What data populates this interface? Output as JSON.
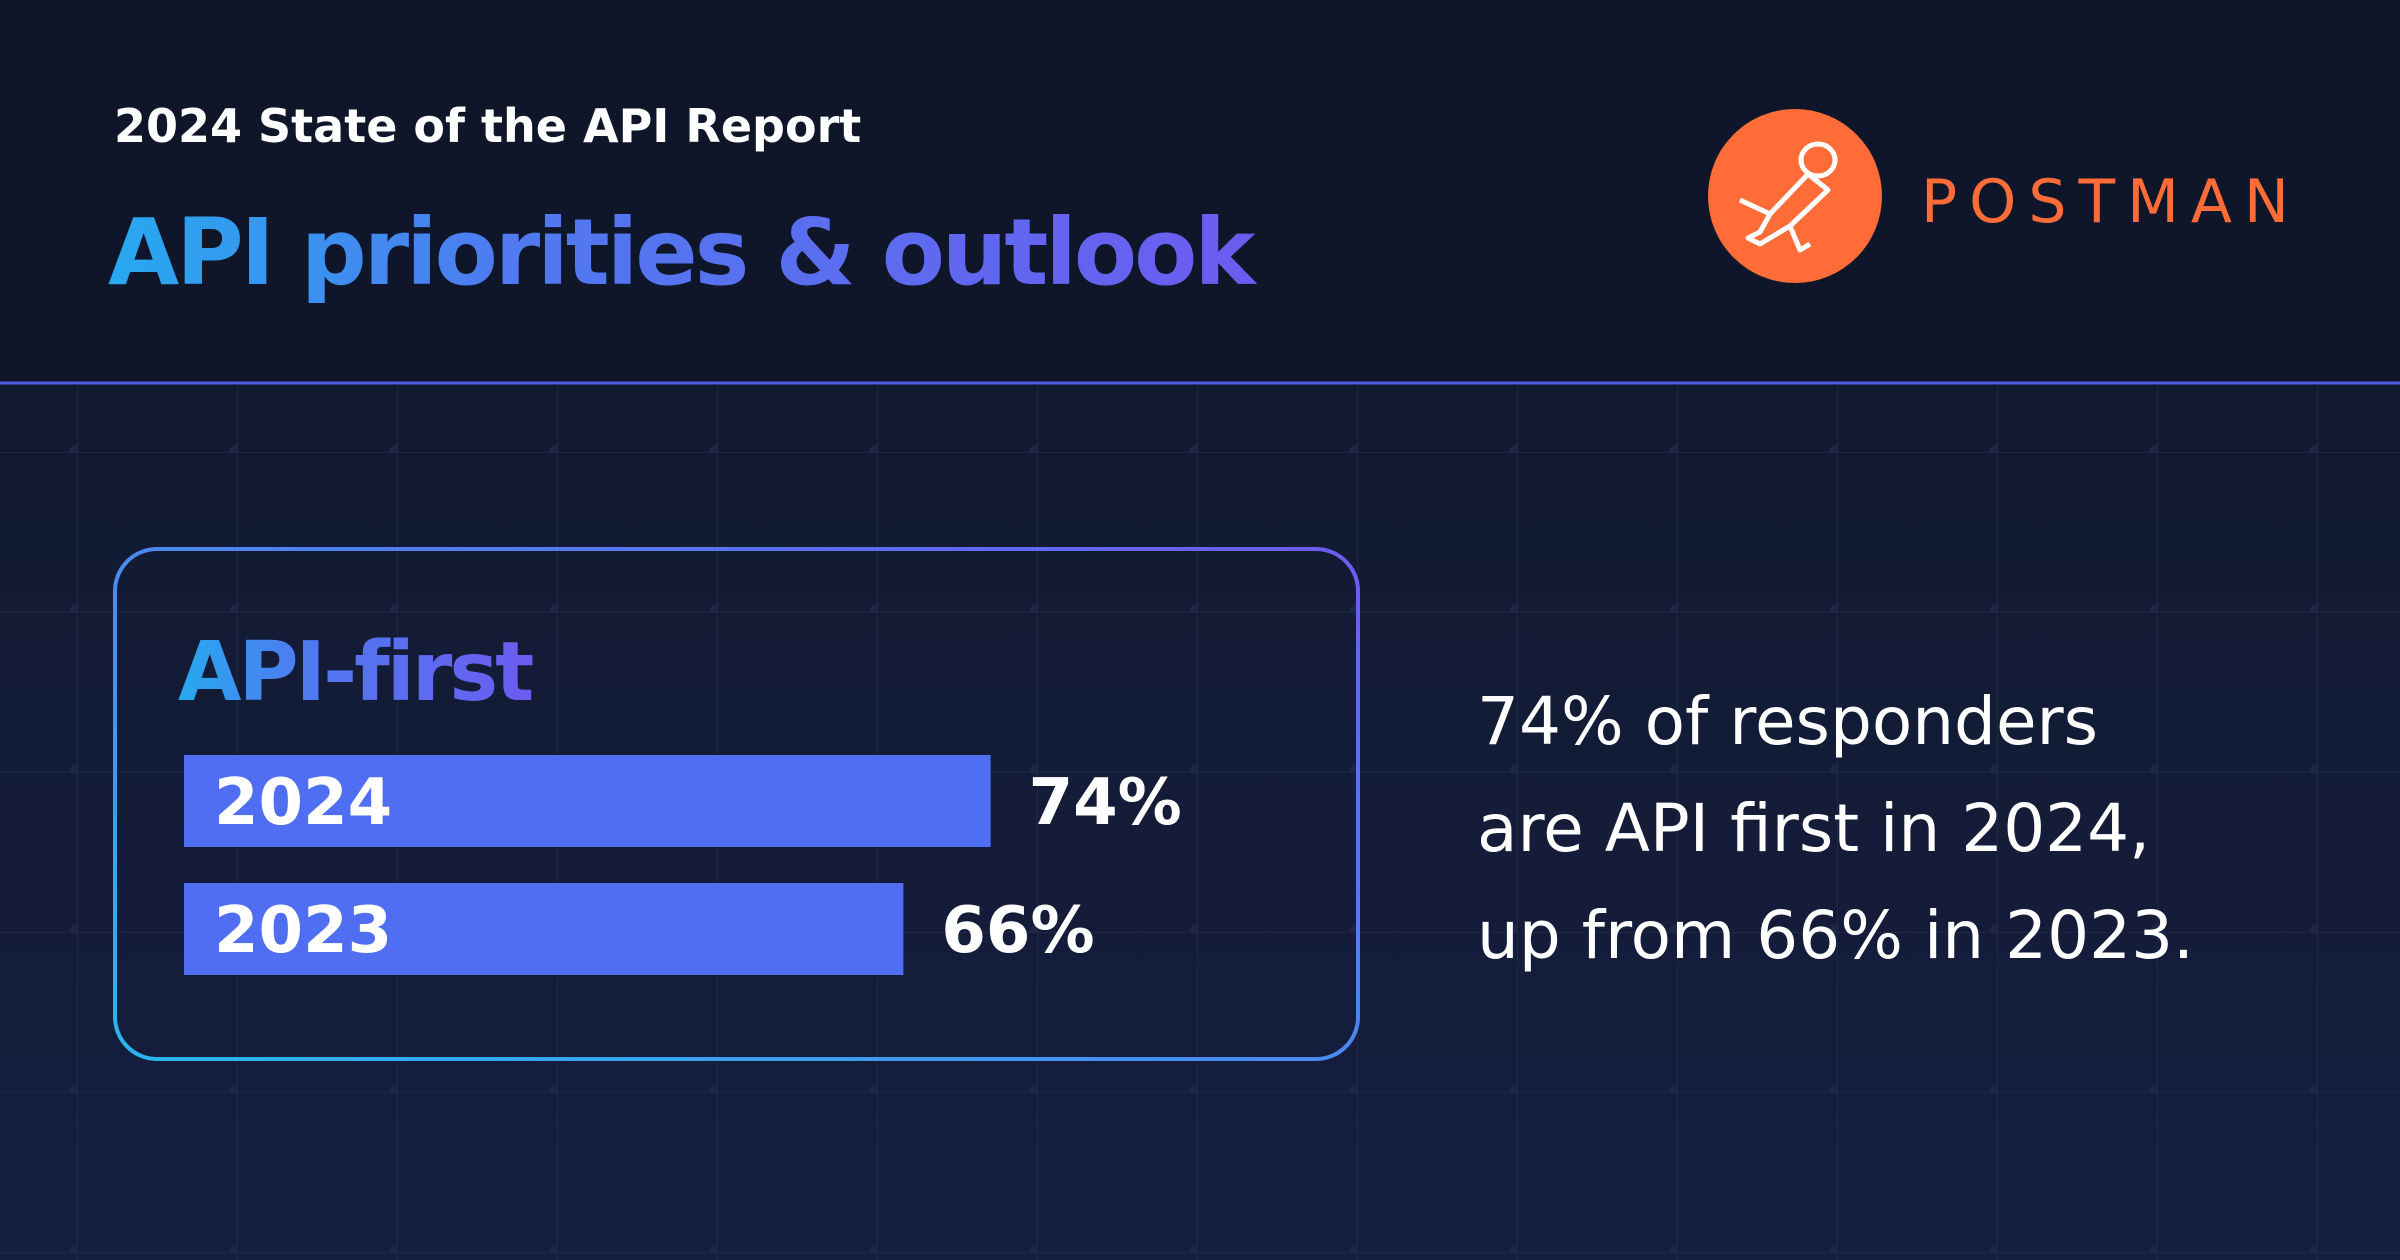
{
  "header": {
    "report": "2024 State of the API Report",
    "title": "API priorities & outlook",
    "brand": "POSTMAN"
  },
  "chart_data": {
    "type": "bar",
    "orientation": "horizontal",
    "title": "API-first",
    "categories": [
      "2024",
      "2023"
    ],
    "values": [
      74,
      66
    ],
    "value_labels": [
      "74%",
      "66%"
    ],
    "color": "#4f6ef2"
  },
  "description": [
    "74% of responders",
    "are API first in 2024,",
    "up from 66% in 2023."
  ]
}
